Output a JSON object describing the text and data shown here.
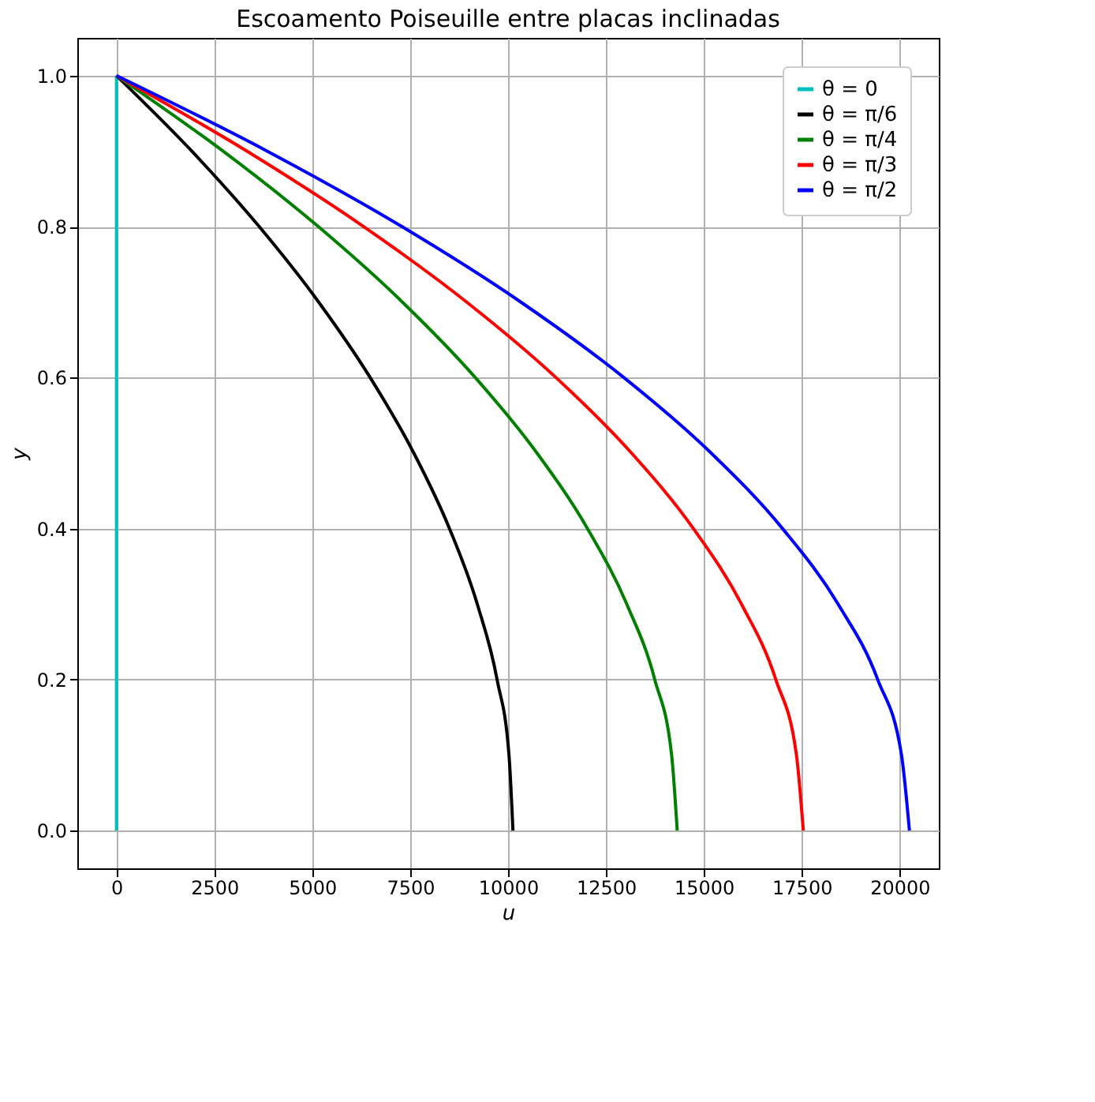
{
  "chart_data": {
    "type": "line",
    "title": "Escoamento Poiseuille entre placas inclinadas",
    "xlabel": "u",
    "ylabel": "y",
    "series": [
      {
        "name": "θ = 0",
        "color": "#00bfbf",
        "x": [
          0,
          0
        ],
        "values": [
          0,
          1
        ]
      },
      {
        "name": "θ = π/6",
        "color": "#000000",
        "x": [
          10125,
          10024,
          9720,
          9214,
          8505,
          7594,
          6480,
          5164,
          3645,
          1924,
          0
        ],
        "values": [
          0,
          0.1,
          0.2,
          0.3,
          0.4,
          0.5,
          0.6,
          0.7,
          0.8,
          0.9,
          1
        ]
      },
      {
        "name": "θ = π/4",
        "color": "#008000",
        "x": [
          14320,
          14177,
          13747,
          13031,
          12029,
          10740,
          9165,
          7303,
          5155,
          2721,
          0
        ],
        "values": [
          0,
          0.1,
          0.2,
          0.3,
          0.4,
          0.5,
          0.6,
          0.7,
          0.8,
          0.9,
          1
        ]
      },
      {
        "name": "θ = π/3",
        "color": "#ff0000",
        "x": [
          17540,
          17365,
          16838,
          15961,
          14734,
          13155,
          11226,
          8945,
          6314,
          3333,
          0
        ],
        "values": [
          0,
          0.1,
          0.2,
          0.3,
          0.4,
          0.5,
          0.6,
          0.7,
          0.8,
          0.9,
          1
        ]
      },
      {
        "name": "θ = π/2",
        "color": "#0000ff",
        "x": [
          20250,
          20048,
          19440,
          18428,
          17010,
          15188,
          12960,
          10328,
          7290,
          3848,
          0
        ],
        "values": [
          0,
          0.1,
          0.2,
          0.3,
          0.4,
          0.5,
          0.6,
          0.7,
          0.8,
          0.9,
          1
        ]
      }
    ],
    "xlim": [
      -1000,
      21000
    ],
    "xticks": [
      0,
      2500,
      5000,
      7500,
      10000,
      12500,
      15000,
      17500,
      20000
    ],
    "ylim": [
      -0.05,
      1.05
    ],
    "yticks": [
      {
        "value": 0,
        "label": "0.0"
      },
      {
        "value": 0.2,
        "label": "0.2"
      },
      {
        "value": 0.4,
        "label": "0.4"
      },
      {
        "value": 0.6,
        "label": "0.6"
      },
      {
        "value": 0.8,
        "label": "0.8"
      },
      {
        "value": 1,
        "label": "1.0"
      }
    ],
    "grid": true,
    "legend": "top right",
    "marker": "none",
    "line_style": "solid"
  }
}
